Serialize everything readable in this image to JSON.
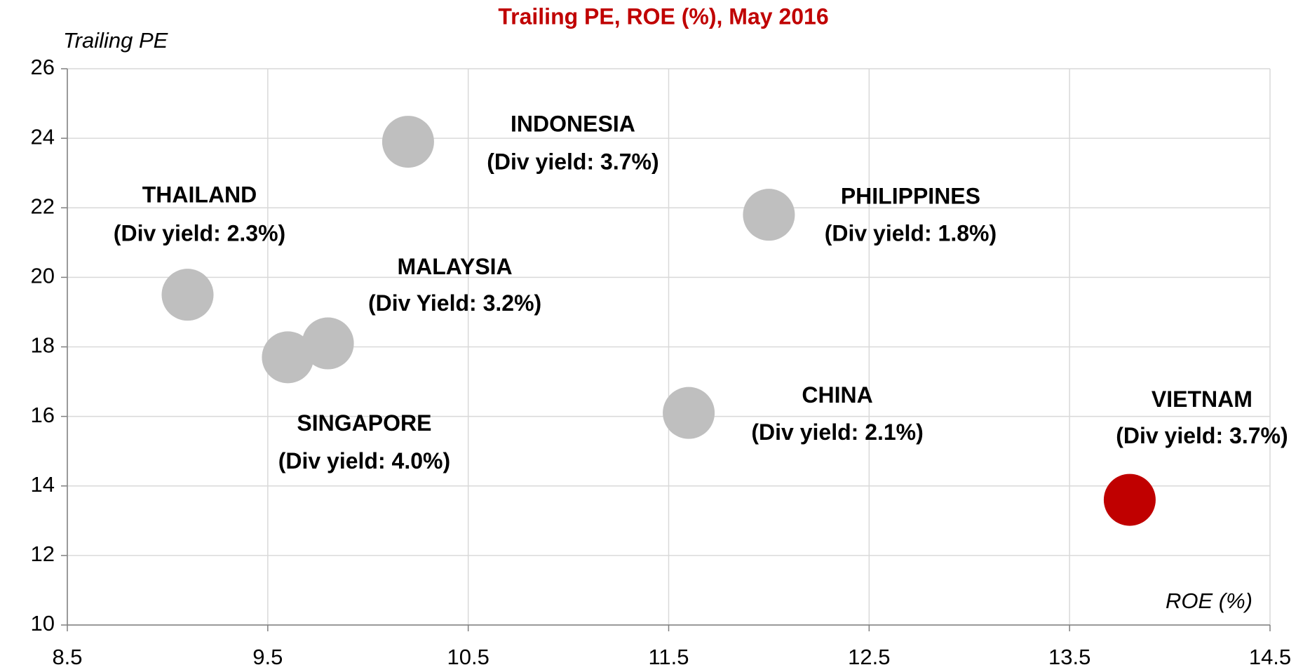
{
  "chart_data": {
    "type": "scatter",
    "title": "Trailing PE, ROE (%), May 2016",
    "y_label": "Trailing PE",
    "x_label": "ROE (%)",
    "names": [
      "THAILAND",
      "SINGAPORE",
      "MALAYSIA",
      "INDONESIA",
      "PHILIPPINES",
      "CHINA",
      "VIETNAM"
    ],
    "notes": [
      "(Div yield: 2.3%)",
      "(Div yield: 4.0%)",
      "(Div Yield: 3.2%)",
      "(Div yield: 3.7%)",
      "(Div yield: 1.8%)",
      "(Div yield: 2.1%)",
      "(Div yield: 3.7%)"
    ],
    "x": [
      9.1,
      9.6,
      9.8,
      10.2,
      12.0,
      11.6,
      13.8
    ],
    "values": [
      19.5,
      17.7,
      18.1,
      23.9,
      21.8,
      16.1,
      13.6
    ],
    "colors": [
      "#bfbfbf",
      "#bfbfbf",
      "#bfbfbf",
      "#bfbfbf",
      "#bfbfbf",
      "#bfbfbf",
      "#c00000"
    ],
    "xlim": [
      8.5,
      14.5
    ],
    "xticks": [
      8.5,
      9.5,
      10.5,
      11.5,
      12.5,
      13.5,
      14.5
    ],
    "ylim": [
      10,
      26
    ],
    "yticks": [
      10,
      12,
      14,
      16,
      18,
      20,
      22,
      24,
      26
    ],
    "grid": true
  }
}
